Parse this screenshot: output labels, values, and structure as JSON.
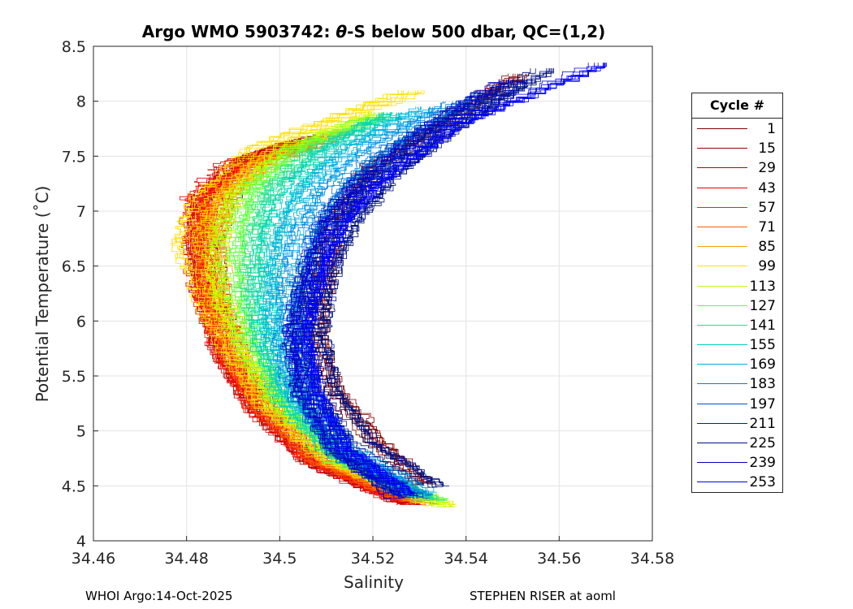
{
  "title_prefix": "Argo WMO 5903742: ",
  "title_theta": "θ",
  "title_suffix": "-S below 500 dbar,  QC=(1,2)",
  "footer_left": "WHOI Argo:14-Oct-2025",
  "footer_right": "STEPHEN RISER at aoml",
  "chart_data": {
    "type": "line",
    "title": "Argo WMO 5903742: θ-S below 500 dbar,  QC=(1,2)",
    "xlabel": "Salinity",
    "ylabel": "Potential Temperature (˚C)",
    "xlim": [
      34.46,
      34.58
    ],
    "ylim": [
      4,
      8.5
    ],
    "xticks": [
      34.46,
      34.48,
      34.5,
      34.52,
      34.54,
      34.56,
      34.58
    ],
    "xtick_labels": [
      "34.46",
      "34.48",
      "34.5",
      "34.52",
      "34.54",
      "34.56",
      "34.58"
    ],
    "yticks": [
      4,
      4.5,
      5,
      5.5,
      6,
      6.5,
      7,
      7.5,
      8,
      8.5
    ],
    "ytick_labels": [
      "4",
      "4.5",
      "5",
      "5.5",
      "6",
      "6.5",
      "7",
      "7.5",
      "8",
      "8.5"
    ],
    "grid": true,
    "legend_title": "Cycle #",
    "legend_placement": "outside-right",
    "series": [
      {
        "name": "1",
        "color": "#800000",
        "points": [
          [
            34.532,
            4.52
          ],
          [
            34.522,
            4.9
          ],
          [
            34.512,
            5.4
          ],
          [
            34.508,
            5.9
          ],
          [
            34.51,
            6.4
          ],
          [
            34.512,
            6.9
          ],
          [
            34.52,
            7.4
          ],
          [
            34.535,
            7.8
          ],
          [
            34.552,
            8.25
          ]
        ]
      },
      {
        "name": "15",
        "color": "#9e0000",
        "points": [
          [
            34.53,
            4.35
          ],
          [
            34.51,
            4.7
          ],
          [
            34.497,
            5.2
          ],
          [
            34.49,
            5.7
          ],
          [
            34.486,
            6.2
          ],
          [
            34.485,
            6.7
          ],
          [
            34.487,
            7.1
          ],
          [
            34.495,
            7.5
          ],
          [
            34.51,
            7.7
          ]
        ]
      },
      {
        "name": "29",
        "color": "#c00000",
        "points": [
          [
            34.529,
            4.34
          ],
          [
            34.509,
            4.7
          ],
          [
            34.496,
            5.2
          ],
          [
            34.489,
            5.7
          ],
          [
            34.485,
            6.2
          ],
          [
            34.483,
            6.7
          ],
          [
            34.484,
            7.1
          ],
          [
            34.492,
            7.45
          ],
          [
            34.505,
            7.65
          ]
        ]
      },
      {
        "name": "43",
        "color": "#e00000",
        "points": [
          [
            34.528,
            4.34
          ],
          [
            34.508,
            4.72
          ],
          [
            34.495,
            5.25
          ],
          [
            34.488,
            5.75
          ],
          [
            34.484,
            6.25
          ],
          [
            34.482,
            6.75
          ],
          [
            34.482,
            7.15
          ],
          [
            34.49,
            7.45
          ],
          [
            34.503,
            7.6
          ]
        ]
      },
      {
        "name": "57",
        "color": "#ff2000",
        "points": [
          [
            34.529,
            4.36
          ],
          [
            34.509,
            4.72
          ],
          [
            34.496,
            5.25
          ],
          [
            34.489,
            5.75
          ],
          [
            34.485,
            6.25
          ],
          [
            34.484,
            6.75
          ],
          [
            34.485,
            7.1
          ],
          [
            34.493,
            7.4
          ],
          [
            34.507,
            7.6
          ]
        ]
      },
      {
        "name": "71",
        "color": "#ff6000",
        "points": [
          [
            34.53,
            4.36
          ],
          [
            34.51,
            4.72
          ],
          [
            34.497,
            5.25
          ],
          [
            34.49,
            5.75
          ],
          [
            34.486,
            6.25
          ],
          [
            34.485,
            6.75
          ],
          [
            34.487,
            7.1
          ],
          [
            34.496,
            7.45
          ],
          [
            34.51,
            7.65
          ]
        ]
      },
      {
        "name": "85",
        "color": "#ffa000",
        "points": [
          [
            34.531,
            4.37
          ],
          [
            34.511,
            4.73
          ],
          [
            34.498,
            5.25
          ],
          [
            34.491,
            5.75
          ],
          [
            34.487,
            6.25
          ],
          [
            34.486,
            6.75
          ],
          [
            34.489,
            7.15
          ],
          [
            34.498,
            7.5
          ],
          [
            34.515,
            7.75
          ]
        ]
      },
      {
        "name": "99",
        "color": "#ffe000",
        "points": [
          [
            34.535,
            4.33
          ],
          [
            34.512,
            4.72
          ],
          [
            34.498,
            5.25
          ],
          [
            34.49,
            5.75
          ],
          [
            34.484,
            6.25
          ],
          [
            34.48,
            6.75
          ],
          [
            34.484,
            7.15
          ],
          [
            34.496,
            7.6
          ],
          [
            34.528,
            8.1
          ]
        ]
      },
      {
        "name": "113",
        "color": "#c0ff00",
        "points": [
          [
            34.536,
            4.32
          ],
          [
            34.513,
            4.72
          ],
          [
            34.499,
            5.25
          ],
          [
            34.492,
            5.75
          ],
          [
            34.487,
            6.25
          ],
          [
            34.486,
            6.75
          ],
          [
            34.49,
            7.15
          ],
          [
            34.5,
            7.55
          ],
          [
            34.52,
            7.9
          ]
        ]
      },
      {
        "name": "127",
        "color": "#60ff40",
        "points": [
          [
            34.534,
            4.38
          ],
          [
            34.513,
            4.75
          ],
          [
            34.5,
            5.3
          ],
          [
            34.494,
            5.8
          ],
          [
            34.491,
            6.3
          ],
          [
            34.491,
            6.8
          ],
          [
            34.494,
            7.2
          ],
          [
            34.503,
            7.55
          ],
          [
            34.52,
            7.85
          ]
        ]
      },
      {
        "name": "141",
        "color": "#20e090",
        "points": [
          [
            34.533,
            4.38
          ],
          [
            34.513,
            4.76
          ],
          [
            34.501,
            5.3
          ],
          [
            34.496,
            5.8
          ],
          [
            34.494,
            6.3
          ],
          [
            34.495,
            6.8
          ],
          [
            34.498,
            7.2
          ],
          [
            34.507,
            7.55
          ],
          [
            34.523,
            7.9
          ]
        ]
      },
      {
        "name": "155",
        "color": "#00d0c0",
        "points": [
          [
            34.531,
            4.4
          ],
          [
            34.513,
            4.8
          ],
          [
            34.502,
            5.3
          ],
          [
            34.498,
            5.8
          ],
          [
            34.497,
            6.3
          ],
          [
            34.498,
            6.8
          ],
          [
            34.502,
            7.2
          ],
          [
            34.51,
            7.55
          ],
          [
            34.525,
            7.9
          ]
        ]
      },
      {
        "name": "169",
        "color": "#00b0e0",
        "points": [
          [
            34.531,
            4.45
          ],
          [
            34.514,
            4.85
          ],
          [
            34.504,
            5.35
          ],
          [
            34.5,
            5.85
          ],
          [
            34.5,
            6.35
          ],
          [
            34.502,
            6.85
          ],
          [
            34.507,
            7.25
          ],
          [
            34.517,
            7.6
          ],
          [
            34.532,
            7.95
          ]
        ]
      },
      {
        "name": "183",
        "color": "#0080e0",
        "points": [
          [
            34.53,
            4.42
          ],
          [
            34.514,
            4.82
          ],
          [
            34.505,
            5.35
          ],
          [
            34.502,
            5.85
          ],
          [
            34.503,
            6.35
          ],
          [
            34.506,
            6.85
          ],
          [
            34.512,
            7.25
          ],
          [
            34.522,
            7.6
          ],
          [
            34.538,
            8.0
          ]
        ]
      },
      {
        "name": "197",
        "color": "#0050d0",
        "points": [
          [
            34.529,
            4.4
          ],
          [
            34.514,
            4.8
          ],
          [
            34.506,
            5.35
          ],
          [
            34.504,
            5.85
          ],
          [
            34.506,
            6.35
          ],
          [
            34.51,
            6.85
          ],
          [
            34.517,
            7.25
          ],
          [
            34.528,
            7.65
          ],
          [
            34.545,
            8.1
          ]
        ]
      },
      {
        "name": "211",
        "color": "#0020a0",
        "points": [
          [
            34.528,
            4.42
          ],
          [
            34.514,
            4.85
          ],
          [
            34.507,
            5.4
          ],
          [
            34.506,
            5.9
          ],
          [
            34.508,
            6.4
          ],
          [
            34.513,
            6.9
          ],
          [
            34.521,
            7.3
          ],
          [
            34.533,
            7.7
          ],
          [
            34.552,
            8.2
          ]
        ]
      },
      {
        "name": "225",
        "color": "#001080",
        "points": [
          [
            34.533,
            4.5
          ],
          [
            34.518,
            4.9
          ],
          [
            34.51,
            5.4
          ],
          [
            34.507,
            5.9
          ],
          [
            34.509,
            6.4
          ],
          [
            34.514,
            6.9
          ],
          [
            34.523,
            7.35
          ],
          [
            34.537,
            7.8
          ],
          [
            34.556,
            8.3
          ]
        ]
      },
      {
        "name": "239",
        "color": "#0000c0",
        "points": [
          [
            34.527,
            4.4
          ],
          [
            34.513,
            4.85
          ],
          [
            34.506,
            5.4
          ],
          [
            34.504,
            5.9
          ],
          [
            34.507,
            6.4
          ],
          [
            34.511,
            6.9
          ],
          [
            34.519,
            7.3
          ],
          [
            34.532,
            7.75
          ],
          [
            34.55,
            8.2
          ]
        ]
      },
      {
        "name": "253",
        "color": "#0000ff",
        "points": [
          [
            34.528,
            4.42
          ],
          [
            34.514,
            4.85
          ],
          [
            34.507,
            5.4
          ],
          [
            34.505,
            5.9
          ],
          [
            34.508,
            6.4
          ],
          [
            34.513,
            6.9
          ],
          [
            34.522,
            7.3
          ],
          [
            34.538,
            7.8
          ],
          [
            34.569,
            8.35
          ]
        ]
      }
    ]
  }
}
